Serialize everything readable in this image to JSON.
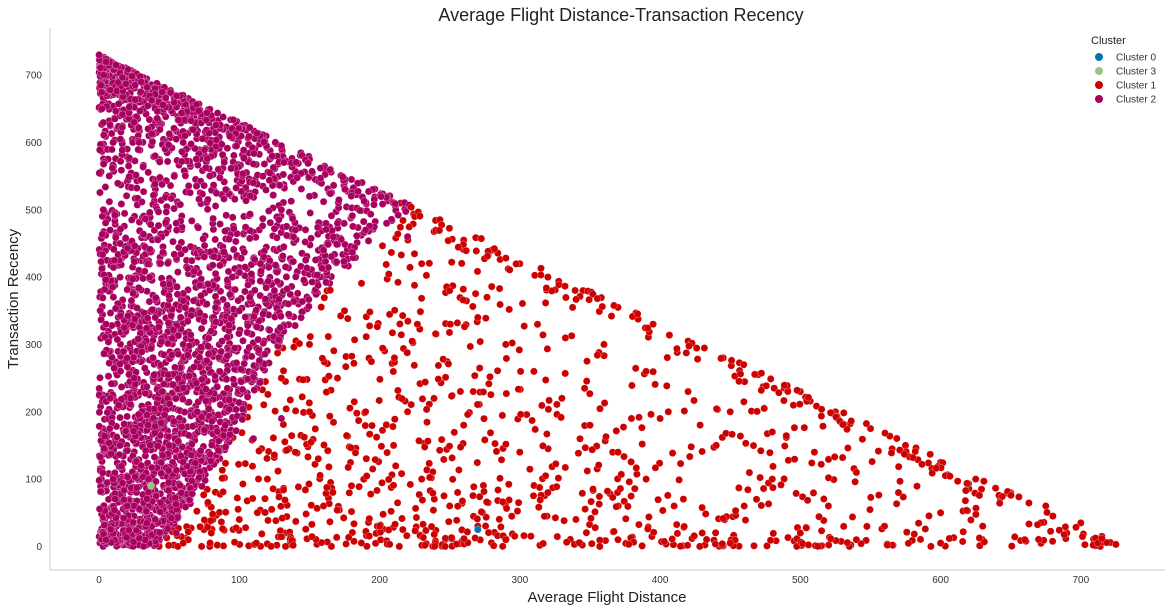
{
  "chart_data": {
    "type": "scatter",
    "title": "Average Flight Distance-Transaction Recency",
    "xlabel": "Average Flight Distance",
    "ylabel": "Transaction Recency",
    "xlim": [
      -35,
      760
    ],
    "ylim": [
      -35,
      770
    ],
    "xticks": [
      0,
      100,
      200,
      300,
      400,
      500,
      600,
      700
    ],
    "yticks": [
      0,
      100,
      200,
      300,
      400,
      500,
      600,
      700
    ],
    "grid": false,
    "legend": {
      "title": "Cluster",
      "position": "top-right",
      "entries": [
        {
          "label": "Cluster 0",
          "color": "#0173b2"
        },
        {
          "label": "Cluster 3",
          "color": "#9bc184"
        },
        {
          "label": "Cluster 1",
          "color": "#cc0000"
        },
        {
          "label": "Cluster 2",
          "color": "#a8005f"
        }
      ]
    },
    "series": [
      {
        "name": "Cluster 2",
        "color": "#a8005f",
        "region": "triangle x+y<=730, x<=65 for y<180, x<=145 in mid band, up to x=230 for y>=400",
        "points": [
          [
            0,
            730
          ],
          [
            5,
            720
          ],
          [
            12,
            715
          ],
          [
            20,
            705
          ],
          [
            30,
            690
          ],
          [
            45,
            675
          ],
          [
            60,
            665
          ],
          [
            80,
            640
          ],
          [
            100,
            622
          ],
          [
            115,
            610
          ],
          [
            130,
            595
          ],
          [
            150,
            575
          ],
          [
            165,
            560
          ],
          [
            180,
            545
          ],
          [
            195,
            530
          ],
          [
            210,
            510
          ],
          [
            2,
            650
          ],
          [
            10,
            600
          ],
          [
            25,
            630
          ],
          [
            40,
            580
          ],
          [
            60,
            600
          ],
          [
            85,
            560
          ],
          [
            110,
            540
          ],
          [
            130,
            500
          ],
          [
            150,
            520
          ],
          [
            170,
            480
          ],
          [
            190,
            470
          ],
          [
            205,
            480
          ],
          [
            220,
            460
          ],
          [
            160,
            440
          ],
          [
            140,
            470
          ],
          [
            3,
            500
          ],
          [
            15,
            450
          ],
          [
            35,
            420
          ],
          [
            55,
            480
          ],
          [
            75,
            430
          ],
          [
            95,
            400
          ],
          [
            115,
            420
          ],
          [
            125,
            380
          ],
          [
            135,
            360
          ],
          [
            100,
            350
          ],
          [
            80,
            320
          ],
          [
            60,
            300
          ],
          [
            40,
            340
          ],
          [
            20,
            280
          ],
          [
            5,
            330
          ],
          [
            8,
            220
          ],
          [
            25,
            250
          ],
          [
            45,
            230
          ],
          [
            70,
            200
          ],
          [
            90,
            180
          ],
          [
            110,
            160
          ],
          [
            130,
            190
          ],
          [
            50,
            150
          ],
          [
            30,
            120
          ],
          [
            10,
            100
          ],
          [
            20,
            60
          ],
          [
            40,
            40
          ],
          [
            55,
            20
          ],
          [
            5,
            10
          ],
          [
            15,
            150
          ],
          [
            35,
            180
          ]
        ]
      },
      {
        "name": "Cluster 1",
        "color": "#cc0000",
        "region": "x+y<=730 outside Cluster 2 region",
        "points": [
          [
            215,
            510
          ],
          [
            225,
            490
          ],
          [
            240,
            470
          ],
          [
            260,
            455
          ],
          [
            280,
            440
          ],
          [
            300,
            420
          ],
          [
            320,
            400
          ],
          [
            345,
            380
          ],
          [
            370,
            355
          ],
          [
            395,
            330
          ],
          [
            420,
            305
          ],
          [
            445,
            280
          ],
          [
            470,
            255
          ],
          [
            500,
            230
          ],
          [
            525,
            200
          ],
          [
            550,
            175
          ],
          [
            575,
            150
          ],
          [
            600,
            125
          ],
          [
            625,
            100
          ],
          [
            650,
            80
          ],
          [
            675,
            60
          ],
          [
            700,
            35
          ],
          [
            715,
            15
          ],
          [
            725,
            3
          ],
          [
            230,
            420
          ],
          [
            250,
            380
          ],
          [
            270,
            340
          ],
          [
            290,
            300
          ],
          [
            310,
            260
          ],
          [
            330,
            220
          ],
          [
            350,
            180
          ],
          [
            370,
            140
          ],
          [
            390,
            100
          ],
          [
            410,
            60
          ],
          [
            430,
            20
          ],
          [
            450,
            5
          ],
          [
            360,
            300
          ],
          [
            390,
            260
          ],
          [
            420,
            230
          ],
          [
            450,
            200
          ],
          [
            480,
            170
          ],
          [
            510,
            140
          ],
          [
            540,
            110
          ],
          [
            570,
            80
          ],
          [
            600,
            50
          ],
          [
            630,
            30
          ],
          [
            660,
            10
          ],
          [
            690,
            20
          ],
          [
            480,
            100
          ],
          [
            520,
            60
          ],
          [
            560,
            30
          ],
          [
            600,
            5
          ],
          [
            440,
            150
          ],
          [
            400,
            190
          ],
          [
            460,
            60
          ],
          [
            500,
            20
          ],
          [
            540,
            10
          ],
          [
            150,
            300
          ],
          [
            170,
            250
          ],
          [
            190,
            200
          ],
          [
            210,
            150
          ],
          [
            230,
            100
          ],
          [
            250,
            60
          ],
          [
            270,
            30
          ],
          [
            290,
            10
          ],
          [
            200,
            30
          ],
          [
            160,
            60
          ],
          [
            120,
            100
          ],
          [
            100,
            40
          ],
          [
            80,
            20
          ],
          [
            60,
            5
          ],
          [
            140,
            140
          ],
          [
            180,
            90
          ],
          [
            220,
            200
          ],
          [
            260,
            180
          ],
          [
            300,
            140
          ],
          [
            320,
            80
          ],
          [
            340,
            40
          ],
          [
            370,
            10
          ],
          [
            150,
            200
          ],
          [
            130,
            250
          ],
          [
            110,
            300
          ],
          [
            175,
            350
          ]
        ]
      },
      {
        "name": "Cluster 3",
        "color": "#9bc184",
        "points": [
          [
            37,
            90
          ]
        ]
      },
      {
        "name": "Cluster 0",
        "color": "#0173b2",
        "points": [
          [
            270,
            25
          ]
        ]
      }
    ]
  }
}
